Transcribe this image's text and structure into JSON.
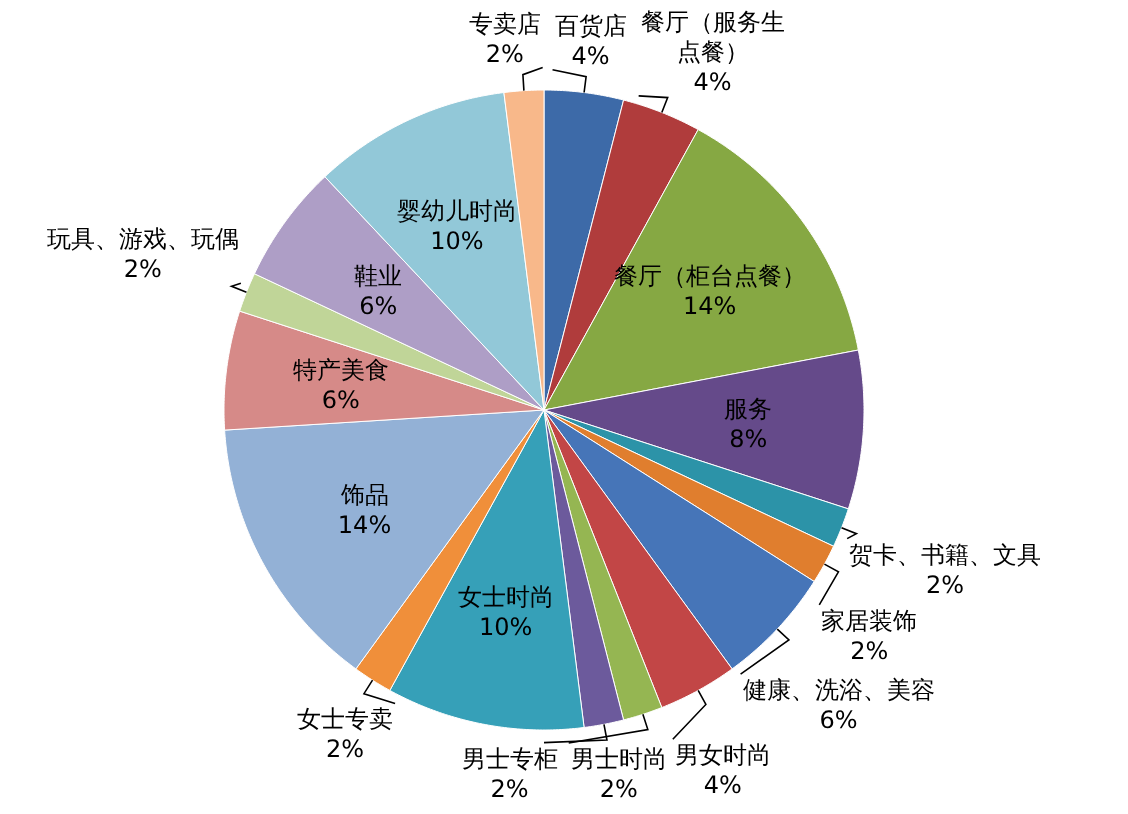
{
  "chart_data": {
    "type": "pie",
    "categories": [
      "百货店",
      "餐厅（服务生点餐）",
      "餐厅（柜台点餐）",
      "服务",
      "贺卡、书籍、文具",
      "家居装饰",
      "健康、洗浴、美容",
      "男女时尚",
      "男士时尚",
      "男士专柜",
      "女士时尚",
      "女士专卖",
      "饰品",
      "特产美食",
      "玩具、游戏、玩偶",
      "鞋业",
      "婴幼儿时尚",
      "专卖店"
    ],
    "values": [
      4,
      4,
      14,
      8,
      2,
      2,
      6,
      4,
      2,
      2,
      10,
      2,
      14,
      6,
      2,
      6,
      10,
      2
    ],
    "colors": [
      "#3d6aa8",
      "#b03c3c",
      "#86a843",
      "#654a8a",
      "#2c93a8",
      "#e07e2e",
      "#4675b8",
      "#c24646",
      "#95b652",
      "#6c5a9c",
      "#36a0b8",
      "#f08f3a",
      "#93b1d6",
      "#d68a88",
      "#c0d598",
      "#ae9ec6",
      "#92c8d8",
      "#f8b88a"
    ],
    "value_labels": [
      "4%",
      "4%",
      "14%",
      "8%",
      "2%",
      "2%",
      "6%",
      "4%",
      "2%",
      "2%",
      "10%",
      "2%",
      "14%",
      "6%",
      "2%",
      "6%",
      "10%",
      "2%"
    ]
  }
}
